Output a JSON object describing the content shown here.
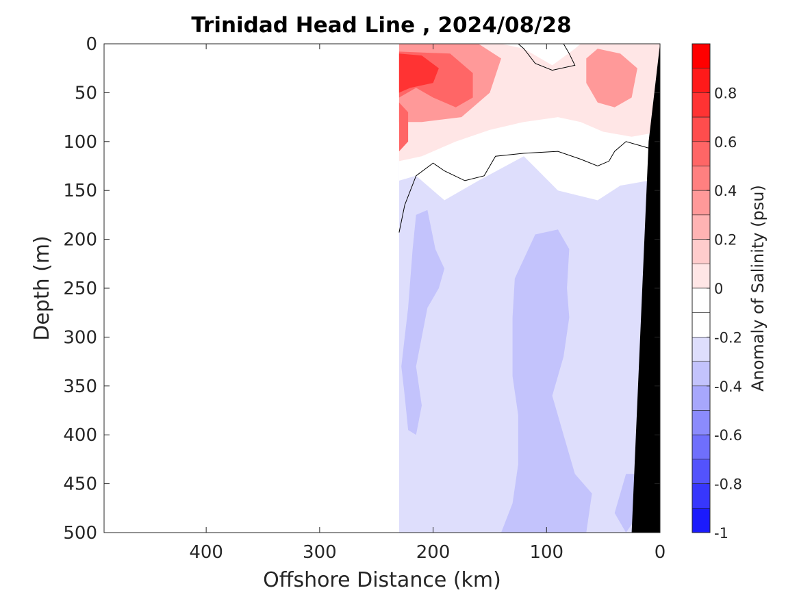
{
  "chart_data": {
    "type": "heatmap",
    "title": "Trinidad Head Line , 2024/08/28",
    "xlabel": "Offshore Distance (km)",
    "ylabel": "Depth (m)",
    "xlim": [
      490,
      0
    ],
    "ylim": [
      0,
      500
    ],
    "x_direction": "reversed",
    "y_direction": "reversed",
    "x_ticks": [
      400,
      300,
      200,
      100,
      0
    ],
    "x_tick_labels": [
      "400",
      "300",
      "200",
      "100",
      "0"
    ],
    "y_ticks": [
      0,
      50,
      100,
      150,
      200,
      250,
      300,
      350,
      400,
      450,
      500
    ],
    "y_tick_labels": [
      "0",
      "50",
      "100",
      "150",
      "200",
      "250",
      "300",
      "350",
      "400",
      "450",
      "500"
    ],
    "grid": false,
    "colorbar": {
      "label": "Anomaly of Salinity (psu)",
      "range": [
        -1,
        1
      ],
      "ticks": [
        0.8,
        0.6,
        0.4,
        0.2,
        0,
        -0.2,
        -0.4,
        -0.6,
        -0.8,
        -1
      ],
      "tick_labels": [
        "0.8",
        "0.6",
        "0.4",
        "0.2",
        "0",
        "-0.2",
        "-0.4",
        "-0.6",
        "-0.8",
        "-1"
      ],
      "levels": [
        {
          "from": 0.9,
          "to": 1.0,
          "color": "#ff0000"
        },
        {
          "from": 0.8,
          "to": 0.9,
          "color": "#ff1a1a"
        },
        {
          "from": 0.7,
          "to": 0.8,
          "color": "#ff3333"
        },
        {
          "from": 0.6,
          "to": 0.7,
          "color": "#ff4d4d"
        },
        {
          "from": 0.5,
          "to": 0.6,
          "color": "#ff6666"
        },
        {
          "from": 0.4,
          "to": 0.5,
          "color": "#ff8080"
        },
        {
          "from": 0.3,
          "to": 0.4,
          "color": "#ff9999"
        },
        {
          "from": 0.2,
          "to": 0.3,
          "color": "#ffb3b3"
        },
        {
          "from": 0.1,
          "to": 0.2,
          "color": "#ffcccc"
        },
        {
          "from": 0.0,
          "to": 0.1,
          "color": "#ffe6e6"
        },
        {
          "from": -0.1,
          "to": 0.0,
          "color": "#ffffff"
        },
        {
          "from": -0.2,
          "to": -0.1,
          "color": "#ffffff"
        },
        {
          "from": -0.3,
          "to": -0.2,
          "color": "#dedefc"
        },
        {
          "from": -0.4,
          "to": -0.3,
          "color": "#c3c3fc"
        },
        {
          "from": -0.5,
          "to": -0.4,
          "color": "#a7a7fc"
        },
        {
          "from": -0.6,
          "to": -0.5,
          "color": "#8b8bfc"
        },
        {
          "from": -0.7,
          "to": -0.6,
          "color": "#6f6ffc"
        },
        {
          "from": -0.8,
          "to": -0.7,
          "color": "#5353fc"
        },
        {
          "from": -0.9,
          "to": -0.8,
          "color": "#3737fc"
        },
        {
          "from": -1.0,
          "to": -0.9,
          "color": "#1b1bfc"
        }
      ]
    },
    "contour_regions": [
      {
        "name": "negative-background",
        "anomaly": -0.2,
        "color": "#dedefc",
        "polygon": [
          [
            230,
            115
          ],
          [
            0,
            115
          ],
          [
            0,
            500
          ],
          [
            230,
            500
          ]
        ]
      },
      {
        "name": "zero-band",
        "anomaly": 0,
        "color": "#ffffff",
        "polygon": [
          [
            230,
            0
          ],
          [
            0,
            0
          ],
          [
            0,
            150
          ],
          [
            10,
            140
          ],
          [
            35,
            145
          ],
          [
            55,
            160
          ],
          [
            90,
            150
          ],
          [
            120,
            115
          ],
          [
            160,
            140
          ],
          [
            190,
            160
          ],
          [
            215,
            135
          ],
          [
            230,
            140
          ]
        ]
      },
      {
        "name": "positive-0.1",
        "anomaly": 0.1,
        "color": "#ffe6e6",
        "polygon": [
          [
            230,
            0
          ],
          [
            140,
            0
          ],
          [
            120,
            5
          ],
          [
            95,
            22
          ],
          [
            75,
            5
          ],
          [
            70,
            0
          ],
          [
            0,
            0
          ],
          [
            0,
            90
          ],
          [
            25,
            95
          ],
          [
            50,
            90
          ],
          [
            70,
            80
          ],
          [
            90,
            75
          ],
          [
            120,
            80
          ],
          [
            150,
            88
          ],
          [
            180,
            100
          ],
          [
            210,
            115
          ],
          [
            230,
            120
          ]
        ]
      },
      {
        "name": "positive-0.3",
        "anomaly": 0.3,
        "color": "#ff9999",
        "polygon": [
          [
            230,
            0
          ],
          [
            160,
            0
          ],
          [
            140,
            15
          ],
          [
            150,
            50
          ],
          [
            175,
            75
          ],
          [
            210,
            80
          ],
          [
            230,
            80
          ]
        ]
      },
      {
        "name": "positive-0.3-east",
        "anomaly": 0.3,
        "color": "#ff9999",
        "polygon": [
          [
            55,
            5
          ],
          [
            35,
            10
          ],
          [
            20,
            25
          ],
          [
            25,
            55
          ],
          [
            40,
            65
          ],
          [
            55,
            60
          ],
          [
            65,
            40
          ],
          [
            65,
            15
          ]
        ]
      },
      {
        "name": "positive-0.5",
        "anomaly": 0.5,
        "color": "#ff6666",
        "polygon": [
          [
            230,
            8
          ],
          [
            185,
            10
          ],
          [
            165,
            30
          ],
          [
            165,
            55
          ],
          [
            180,
            65
          ],
          [
            200,
            55
          ],
          [
            215,
            45
          ],
          [
            230,
            55
          ]
        ]
      },
      {
        "name": "positive-0.7",
        "anomaly": 0.7,
        "color": "#ff3333",
        "polygon": [
          [
            230,
            10
          ],
          [
            210,
            12
          ],
          [
            195,
            25
          ],
          [
            200,
            40
          ],
          [
            220,
            45
          ],
          [
            230,
            50
          ]
        ]
      },
      {
        "name": "positive-0.5-deep",
        "anomaly": 0.5,
        "color": "#ff6666",
        "polygon": [
          [
            230,
            60
          ],
          [
            222,
            70
          ],
          [
            222,
            100
          ],
          [
            230,
            110
          ]
        ]
      },
      {
        "name": "negative-0.3-west",
        "anomaly": -0.3,
        "color": "#c3c3fc",
        "polygon": [
          [
            215,
            175
          ],
          [
            205,
            170
          ],
          [
            198,
            210
          ],
          [
            190,
            230
          ],
          [
            195,
            250
          ],
          [
            205,
            270
          ],
          [
            210,
            300
          ],
          [
            215,
            330
          ],
          [
            210,
            370
          ],
          [
            215,
            400
          ],
          [
            222,
            395
          ],
          [
            225,
            360
          ],
          [
            228,
            330
          ],
          [
            225,
            300
          ],
          [
            222,
            270
          ],
          [
            220,
            240
          ],
          [
            218,
            210
          ]
        ]
      },
      {
        "name": "negative-0.3-central",
        "anomaly": -0.3,
        "color": "#c3c3fc",
        "polygon": [
          [
            110,
            195
          ],
          [
            90,
            190
          ],
          [
            80,
            210
          ],
          [
            82,
            250
          ],
          [
            80,
            280
          ],
          [
            85,
            320
          ],
          [
            95,
            360
          ],
          [
            85,
            400
          ],
          [
            75,
            440
          ],
          [
            60,
            460
          ],
          [
            65,
            500
          ],
          [
            140,
            500
          ],
          [
            130,
            470
          ],
          [
            125,
            430
          ],
          [
            125,
            380
          ],
          [
            130,
            340
          ],
          [
            130,
            280
          ],
          [
            128,
            240
          ]
        ]
      },
      {
        "name": "negative-0.3-coast",
        "anomaly": -0.3,
        "color": "#c3c3fc",
        "polygon": [
          [
            30,
            440
          ],
          [
            20,
            440
          ],
          [
            15,
            460
          ],
          [
            18,
            480
          ],
          [
            30,
            500
          ],
          [
            40,
            480
          ],
          [
            35,
            460
          ]
        ]
      }
    ],
    "zero_contour_lines": [
      [
        [
          230,
          193
        ],
        [
          225,
          165
        ],
        [
          215,
          135
        ],
        [
          200,
          122
        ],
        [
          190,
          130
        ],
        [
          172,
          140
        ],
        [
          155,
          135
        ],
        [
          145,
          115
        ],
        [
          120,
          112
        ],
        [
          90,
          110
        ],
        [
          70,
          118
        ],
        [
          55,
          125
        ],
        [
          45,
          120
        ],
        [
          40,
          110
        ],
        [
          30,
          100
        ],
        [
          15,
          105
        ],
        [
          0,
          110
        ]
      ],
      [
        [
          85,
          0
        ],
        [
          80,
          10
        ],
        [
          75,
          22
        ],
        [
          95,
          27
        ],
        [
          110,
          20
        ],
        [
          120,
          5
        ],
        [
          125,
          0
        ]
      ]
    ],
    "bathymetry": {
      "color": "#000000",
      "polygon": [
        [
          0,
          0
        ],
        [
          0,
          500
        ],
        [
          25,
          500
        ],
        [
          10,
          100
        ],
        [
          0,
          0
        ]
      ]
    },
    "data_coverage_km": [
      0,
      230
    ]
  }
}
